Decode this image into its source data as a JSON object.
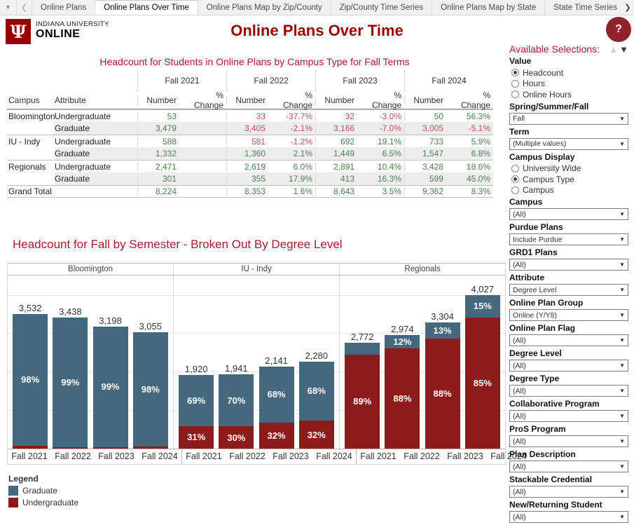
{
  "tabs": {
    "items": [
      {
        "label": "Online Plans",
        "active": false
      },
      {
        "label": "Online Plans Over Time",
        "active": true
      },
      {
        "label": "Online Plans Map by Zip/County",
        "active": false
      },
      {
        "label": "Zip/County Time Series",
        "active": false
      },
      {
        "label": "Online Plans Map by State",
        "active": false
      },
      {
        "label": "State Time Series",
        "active": false
      }
    ],
    "menu_icon": "▼",
    "nav_left": "❮",
    "nav_right": "❯"
  },
  "header": {
    "logo_glyph": "Ψ",
    "logo_line1": "INDIANA UNIVERSITY",
    "logo_line2": "ONLINE",
    "title": "Online Plans Over Time",
    "help_label": "?"
  },
  "table": {
    "title": "Headcount for Students in Online Plans by Campus Type for Fall Terms",
    "row_headers": [
      "Campus",
      "Attribute"
    ],
    "terms": [
      "Fall 2021",
      "Fall 2022",
      "Fall 2023",
      "Fall 2024"
    ],
    "subheaders": [
      "Number",
      "% Change"
    ],
    "rows": [
      {
        "campus": "Bloomington",
        "attribute": "Undergraduate",
        "shaded": false,
        "group_start": true,
        "cells": [
          {
            "num": "53",
            "pct": "",
            "nc": "pos",
            "pc": ""
          },
          {
            "num": "33",
            "pct": "-37.7%",
            "nc": "neg",
            "pc": "neg"
          },
          {
            "num": "32",
            "pct": "-3.0%",
            "nc": "neg",
            "pc": "neg"
          },
          {
            "num": "50",
            "pct": "56.3%",
            "nc": "pos",
            "pc": "pos"
          }
        ]
      },
      {
        "campus": "",
        "attribute": "Graduate",
        "shaded": true,
        "group_start": false,
        "cells": [
          {
            "num": "3,479",
            "pct": "",
            "nc": "pos",
            "pc": ""
          },
          {
            "num": "3,405",
            "pct": "-2.1%",
            "nc": "neg",
            "pc": "neg"
          },
          {
            "num": "3,166",
            "pct": "-7.0%",
            "nc": "neg",
            "pc": "neg"
          },
          {
            "num": "3,005",
            "pct": "-5.1%",
            "nc": "neg",
            "pc": "neg"
          }
        ]
      },
      {
        "campus": "IU - Indy",
        "attribute": "Undergraduate",
        "shaded": false,
        "group_start": true,
        "cells": [
          {
            "num": "588",
            "pct": "",
            "nc": "pos",
            "pc": ""
          },
          {
            "num": "581",
            "pct": "-1.2%",
            "nc": "neg",
            "pc": "neg"
          },
          {
            "num": "692",
            "pct": "19.1%",
            "nc": "pos",
            "pc": "pos"
          },
          {
            "num": "733",
            "pct": "5.9%",
            "nc": "pos",
            "pc": "pos"
          }
        ]
      },
      {
        "campus": "",
        "attribute": "Graduate",
        "shaded": true,
        "group_start": false,
        "cells": [
          {
            "num": "1,332",
            "pct": "",
            "nc": "pos",
            "pc": ""
          },
          {
            "num": "1,360",
            "pct": "2.1%",
            "nc": "pos",
            "pc": "pos"
          },
          {
            "num": "1,449",
            "pct": "6.5%",
            "nc": "pos",
            "pc": "pos"
          },
          {
            "num": "1,547",
            "pct": "6.8%",
            "nc": "pos",
            "pc": "pos"
          }
        ]
      },
      {
        "campus": "Regionals",
        "attribute": "Undergraduate",
        "shaded": false,
        "group_start": true,
        "cells": [
          {
            "num": "2,471",
            "pct": "",
            "nc": "pos",
            "pc": ""
          },
          {
            "num": "2,619",
            "pct": "6.0%",
            "nc": "pos",
            "pc": "pos"
          },
          {
            "num": "2,891",
            "pct": "10.4%",
            "nc": "pos",
            "pc": "pos"
          },
          {
            "num": "3,428",
            "pct": "18.6%",
            "nc": "pos",
            "pc": "pos"
          }
        ]
      },
      {
        "campus": "",
        "attribute": "Graduate",
        "shaded": true,
        "group_start": false,
        "cells": [
          {
            "num": "301",
            "pct": "",
            "nc": "pos",
            "pc": ""
          },
          {
            "num": "355",
            "pct": "17.9%",
            "nc": "pos",
            "pc": "pos"
          },
          {
            "num": "413",
            "pct": "16.3%",
            "nc": "pos",
            "pc": "pos"
          },
          {
            "num": "599",
            "pct": "45.0%",
            "nc": "pos",
            "pc": "pos"
          }
        ]
      }
    ],
    "grand_total": {
      "campus": "Grand Total",
      "attribute": "",
      "cells": [
        {
          "num": "8,224",
          "pct": "",
          "nc": "pos",
          "pc": ""
        },
        {
          "num": "8,353",
          "pct": "1.6%",
          "nc": "pos",
          "pc": "pos"
        },
        {
          "num": "8,643",
          "pct": "3.5%",
          "nc": "pos",
          "pc": "pos"
        },
        {
          "num": "9,362",
          "pct": "8.3%",
          "nc": "pos",
          "pc": "pos"
        }
      ]
    }
  },
  "chart_data": {
    "type": "bar",
    "stacked": true,
    "title": "Headcount for Fall by Semester - Broken Out By Degree Level",
    "categories": [
      "Fall 2021",
      "Fall 2022",
      "Fall 2023",
      "Fall 2024"
    ],
    "legend_entries": [
      "Graduate",
      "Undergraduate"
    ],
    "colors": {
      "graduate": "#44687d",
      "undergraduate": "#8e1b1b"
    },
    "ylim": [
      0,
      4550
    ],
    "gridline_step": 1000,
    "grid": true,
    "panels": [
      {
        "name": "Bloomington",
        "totals": [
          3532,
          3438,
          3198,
          3055
        ],
        "total_labels": [
          "3,532",
          "3,438",
          "3,198",
          "3,055"
        ],
        "graduate_pct": [
          98,
          99,
          99,
          98
        ],
        "graduate_labels": [
          "98%",
          "99%",
          "99%",
          "98%"
        ],
        "undergraduate_pct": [
          2,
          1,
          1,
          2
        ],
        "undergraduate_labels": [
          "",
          "",
          "",
          ""
        ]
      },
      {
        "name": "IU - Indy",
        "totals": [
          1920,
          1941,
          2141,
          2280
        ],
        "total_labels": [
          "1,920",
          "1,941",
          "2,141",
          "2,280"
        ],
        "graduate_pct": [
          69,
          70,
          68,
          68
        ],
        "graduate_labels": [
          "69%",
          "70%",
          "68%",
          "68%"
        ],
        "undergraduate_pct": [
          31,
          30,
          32,
          32
        ],
        "undergraduate_labels": [
          "31%",
          "30%",
          "32%",
          "32%"
        ]
      },
      {
        "name": "Regionals",
        "totals": [
          2772,
          2974,
          3304,
          4027
        ],
        "total_labels": [
          "2,772",
          "2,974",
          "3,304",
          "4,027"
        ],
        "graduate_pct": [
          11,
          12,
          13,
          15
        ],
        "graduate_labels": [
          "",
          "12%",
          "13%",
          "15%"
        ],
        "undergraduate_pct": [
          89,
          88,
          88,
          85
        ],
        "undergraduate_labels": [
          "89%",
          "88%",
          "88%",
          "85%"
        ]
      }
    ]
  },
  "legend": {
    "title": "Legend",
    "items": [
      {
        "label": "Graduate",
        "color": "#44687d"
      },
      {
        "label": "Undergraduate",
        "color": "#8e1b1b"
      }
    ]
  },
  "sidebar": {
    "heading": "Available Selections:",
    "up_icon": "▲",
    "down_icon": "▼",
    "filters": [
      {
        "type": "radio",
        "label": "Value",
        "options": [
          "Headcount",
          "Hours",
          "Online Hours"
        ],
        "selected": 0
      },
      {
        "type": "select",
        "label": "Spring/Summer/Fall",
        "value": "Fall"
      },
      {
        "type": "select",
        "label": "Term",
        "value": "(Multiple values)"
      },
      {
        "type": "radio",
        "label": "Campus Display",
        "options": [
          "University Wide",
          "Campus Type",
          "Campus"
        ],
        "selected": 1
      },
      {
        "type": "select",
        "label": "Campus",
        "value": "(All)"
      },
      {
        "type": "select",
        "label": "Purdue Plans",
        "value": "Include Purdue"
      },
      {
        "type": "select",
        "label": "GRD1 Plans",
        "value": "(All)"
      },
      {
        "type": "select",
        "label": "Attribute",
        "value": "Degree Level"
      },
      {
        "type": "select",
        "label": "Online Plan Group",
        "value": "Online (Y/Y8)"
      },
      {
        "type": "select",
        "label": "Online Plan Flag",
        "value": "(All)"
      },
      {
        "type": "select",
        "label": "Degree Level",
        "value": "(All)"
      },
      {
        "type": "select",
        "label": "Degree Type",
        "value": "(All)"
      },
      {
        "type": "select",
        "label": "Collaborative Program",
        "value": "(All)"
      },
      {
        "type": "select",
        "label": "ProS Program",
        "value": "(All)"
      },
      {
        "type": "select",
        "label": "Plan Description",
        "value": "(All)"
      },
      {
        "type": "select",
        "label": "Stackable Credential",
        "value": "(All)"
      },
      {
        "type": "select",
        "label": "New/Returning Student",
        "value": "(All)"
      }
    ]
  }
}
